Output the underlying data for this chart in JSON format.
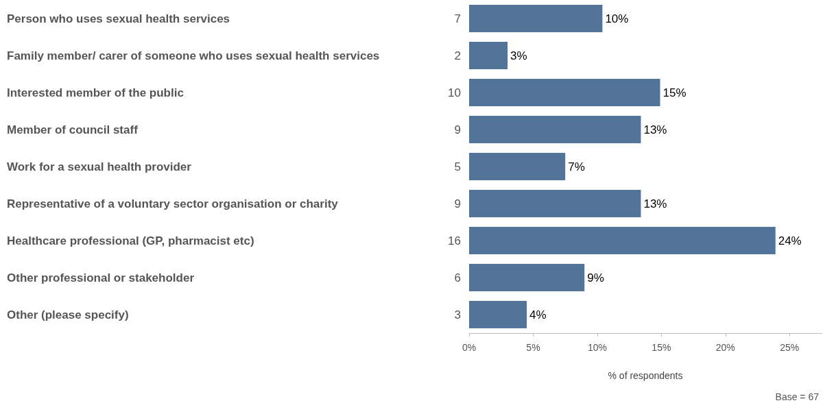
{
  "chart_data": {
    "type": "bar",
    "orientation": "horizontal",
    "categories": [
      "Person who uses sexual health services",
      "Family member/ carer of someone who uses sexual health services",
      "Interested member of the public",
      "Member of council staff",
      "Work for a sexual health provider",
      "Representative of a voluntary sector organisation or charity",
      "Healthcare professional (GP, pharmacist etc)",
      "Other professional or stakeholder",
      "Other (please specify)"
    ],
    "values": [
      10.4,
      3.0,
      14.9,
      13.4,
      7.5,
      13.4,
      23.9,
      9.0,
      4.5
    ],
    "value_labels": [
      "10%",
      "3%",
      "15%",
      "13%",
      "7%",
      "13%",
      "24%",
      "9%",
      "4%"
    ],
    "color": "#527498",
    "xlim": [
      0,
      27.5
    ],
    "xticks": [
      {
        "value": 0,
        "label": "0%"
      },
      {
        "value": 5,
        "label": "5%"
      },
      {
        "value": 10,
        "label": "10%"
      },
      {
        "value": 15,
        "label": "15%"
      },
      {
        "value": 20,
        "label": "20%"
      },
      {
        "value": 25,
        "label": "25%"
      }
    ],
    "xlabel": "% of respondents",
    "grid": false,
    "annotations": [
      "7",
      "2",
      "10",
      "9",
      "5",
      "9",
      "16",
      "6",
      "3",
      "Base = 67"
    ]
  }
}
